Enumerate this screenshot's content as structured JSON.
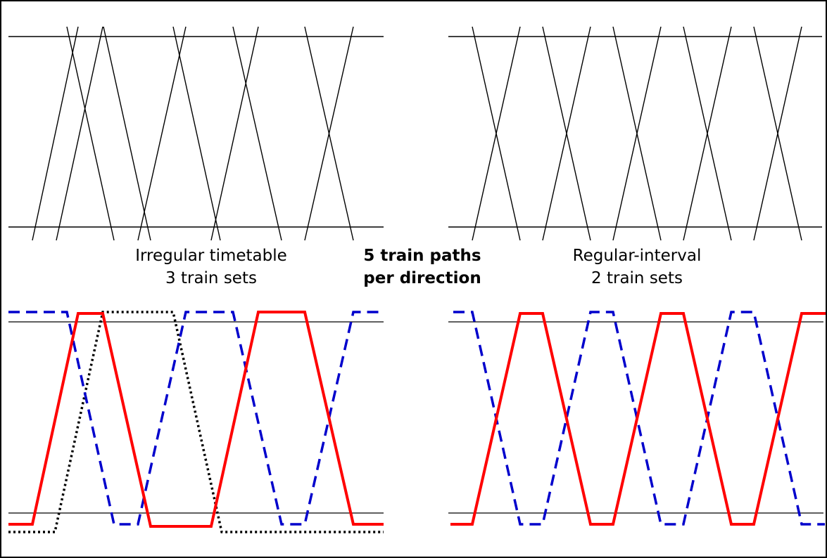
{
  "labels": {
    "irregular_title": "Irregular timetable",
    "irregular_sets": "3 train sets",
    "center_line1": "5 train paths",
    "center_line2": "per direction",
    "regular_title": "Regular-interval",
    "regular_sets": "2 train sets"
  },
  "colors": {
    "path_line": "#000000",
    "set_red": "#ff0000",
    "set_blue": "#0000cc",
    "set_black": "#000000"
  },
  "series_styles": {
    "red": "solid",
    "blue": "dashed",
    "black": "dotted"
  }
}
